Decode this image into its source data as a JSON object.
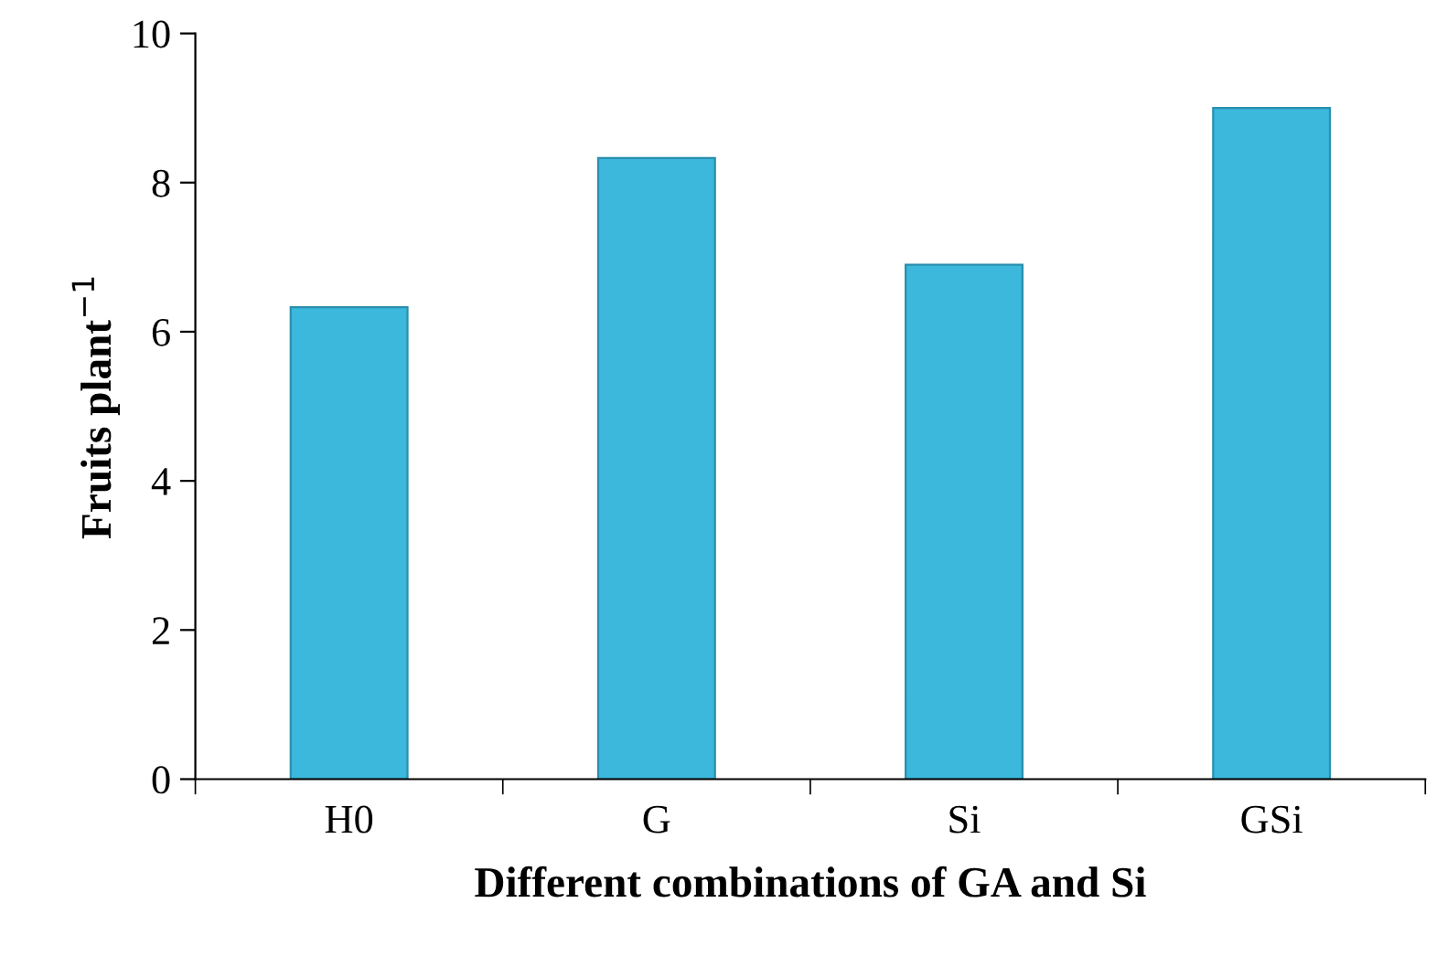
{
  "chart_data": {
    "type": "bar",
    "xlabel": "Different combinations of GA and Si",
    "ylabel": "Fruits plant$^{−1}$",
    "categories": [
      "H0",
      "G",
      "Si",
      "GSi"
    ],
    "values": [
      6.33,
      8.33,
      6.9,
      9.0
    ],
    "color": "#3bb8dc",
    "ylim": [
      0,
      10
    ],
    "yticks": [
      0,
      2,
      4,
      6,
      8,
      10
    ],
    "grid": false
  }
}
